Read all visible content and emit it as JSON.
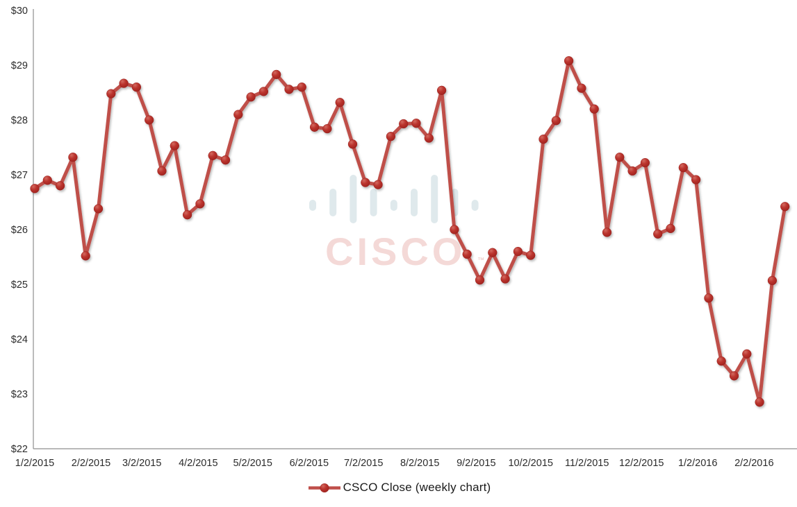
{
  "chart_data": {
    "type": "line",
    "title": "",
    "series": [
      {
        "name": "CSCO Close (weekly chart)",
        "color": "#bf4f4a",
        "marker_color": "#b23430",
        "values": [
          26.75,
          26.9,
          26.8,
          27.32,
          25.52,
          26.38,
          28.48,
          28.67,
          28.6,
          28.0,
          27.07,
          27.53,
          26.27,
          26.47,
          27.35,
          27.27,
          28.1,
          28.42,
          28.52,
          28.83,
          28.56,
          28.6,
          27.87,
          27.84,
          28.32,
          27.56,
          26.86,
          26.82,
          27.7,
          27.93,
          27.94,
          27.67,
          28.54,
          26.0,
          25.55,
          25.08,
          25.58,
          25.1,
          25.6,
          25.53,
          27.65,
          27.99,
          29.08,
          28.58,
          28.2,
          25.95,
          27.32,
          27.07,
          27.22,
          25.92,
          26.02,
          27.13,
          26.91,
          24.75,
          23.6,
          23.33,
          23.73,
          22.85,
          25.07,
          26.42
        ]
      }
    ],
    "x_axis": {
      "tick_labels": [
        "1/2/2015",
        "2/2/2015",
        "3/2/2015",
        "4/2/2015",
        "5/2/2015",
        "6/2/2015",
        "7/2/2015",
        "8/2/2015",
        "9/2/2015",
        "10/2/2015",
        "11/2/2015",
        "12/2/2015",
        "1/2/2016",
        "2/2/2016"
      ]
    },
    "y_axis": {
      "tick_labels": [
        "$30",
        "$29",
        "$28",
        "$27",
        "$26",
        "$25",
        "$24",
        "$23",
        "$22"
      ],
      "min": 22,
      "max": 30,
      "step": 1,
      "prefix": "$"
    },
    "legend": {
      "label": "CSCO Close (weekly chart)",
      "position": "bottom"
    },
    "grid": false,
    "axis_color": "#8e8e8e",
    "tick_text_color": "#2b2b2b"
  },
  "watermark": {
    "text": "CISCO",
    "tm": "™",
    "bar_color": "#dfe9ec",
    "text_color": "#f4d9d7",
    "tm_color": "#ecc4c1"
  }
}
